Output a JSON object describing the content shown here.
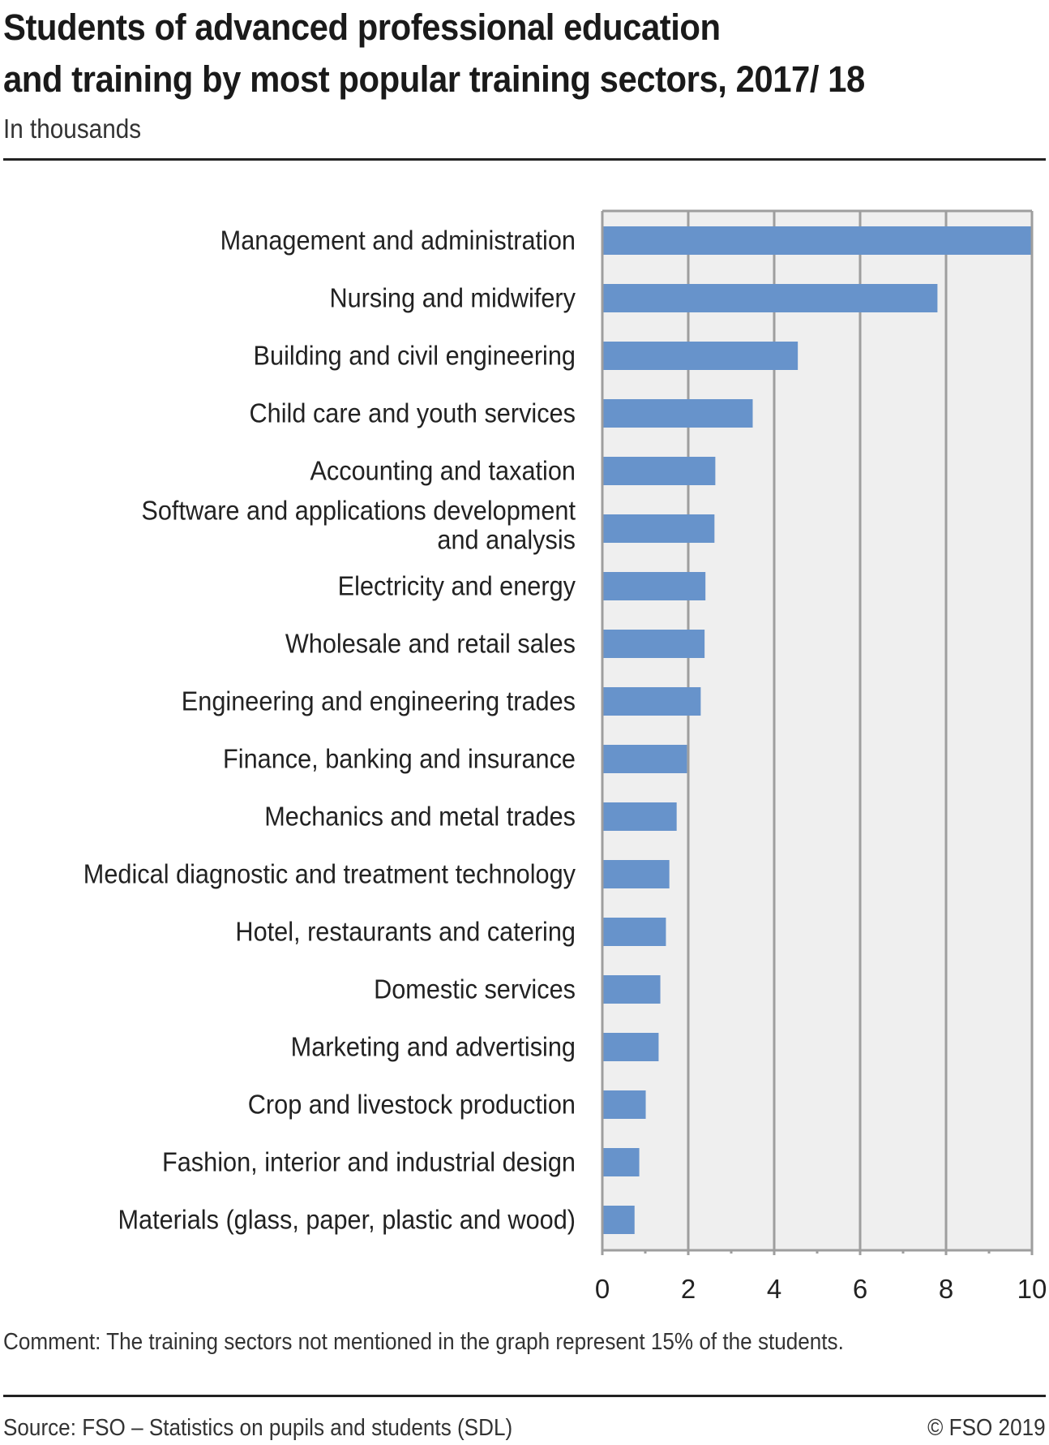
{
  "header": {
    "title_line1": "Students of advanced professional education",
    "title_line2": "and training by most popular training sectors, 2017/ 18",
    "subtitle": "In thousands"
  },
  "footer": {
    "comment": "Comment: The training sectors not mentioned in the graph represent 15% of the students.",
    "source": "Source: FSO – Statistics on pupils and students (SDL)",
    "copyright": "© FSO 2019"
  },
  "colors": {
    "bar": "#6793cb",
    "plot_background": "#efefef",
    "grid": "#9e9e9e"
  },
  "chart_data": {
    "type": "bar",
    "orientation": "horizontal",
    "title": "Students of advanced professional education and training by most popular training sectors, 2017/ 18",
    "subtitle": "In thousands",
    "xlabel": "",
    "ylabel": "",
    "xlim": [
      0,
      10
    ],
    "xticks": [
      0,
      2,
      4,
      6,
      8,
      10
    ],
    "xtick_labels": [
      "0",
      "2",
      "4",
      "6",
      "8",
      "10"
    ],
    "minor_ticks": [
      1,
      3,
      5,
      7,
      9
    ],
    "grid": true,
    "legend": "none",
    "categories": [
      [
        "Management and administration"
      ],
      [
        "Nursing and midwifery"
      ],
      [
        "Building and civil engineering"
      ],
      [
        "Child care and youth services"
      ],
      [
        "Accounting and taxation"
      ],
      [
        "Software and applications development",
        "and analysis"
      ],
      [
        "Electricity and energy"
      ],
      [
        "Wholesale and retail sales"
      ],
      [
        "Engineering and engineering trades"
      ],
      [
        "Finance, banking and insurance"
      ],
      [
        "Mechanics and metal trades"
      ],
      [
        "Medical diagnostic and treatment technology"
      ],
      [
        "Hotel, restaurants and catering"
      ],
      [
        "Domestic services"
      ],
      [
        "Marketing and advertising"
      ],
      [
        "Crop and livestock production"
      ],
      [
        "Fashion, interior and industrial design"
      ],
      [
        "Materials (glass, paper, plastic and wood)"
      ]
    ],
    "values": [
      10.0,
      7.8,
      4.55,
      3.5,
      2.63,
      2.61,
      2.4,
      2.38,
      2.29,
      1.97,
      1.73,
      1.56,
      1.48,
      1.35,
      1.31,
      1.01,
      0.86,
      0.75
    ]
  }
}
